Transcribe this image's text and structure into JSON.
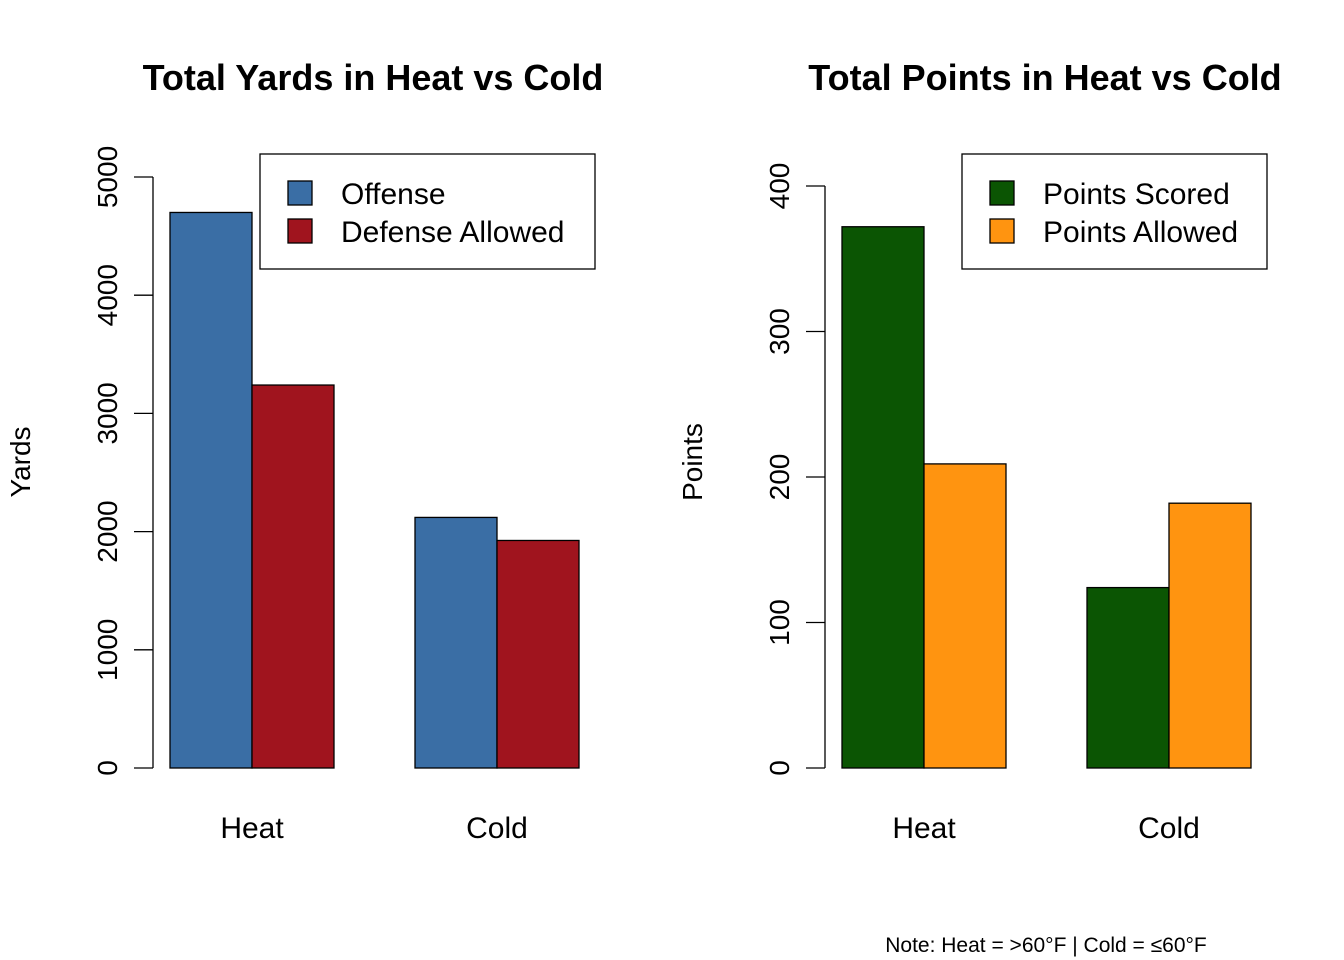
{
  "chart_data": [
    {
      "type": "bar",
      "title": "Total Yards in Heat vs Cold",
      "xlabel": "",
      "ylabel": "Yards",
      "ylim": [
        0,
        5000
      ],
      "yticks": [
        "0",
        "1000",
        "2000",
        "3000",
        "4000",
        "5000"
      ],
      "categories": [
        "Heat",
        "Cold"
      ],
      "series": [
        {
          "name": "Offense",
          "color": "#3A6EA5",
          "values": [
            4700,
            2120
          ]
        },
        {
          "name": "Defense Allowed",
          "color": "#A0141E",
          "values": [
            3240,
            1925
          ]
        }
      ],
      "legend": "top-right"
    },
    {
      "type": "bar",
      "title": "Total Points in Heat vs Cold",
      "xlabel": "",
      "ylabel": "Points",
      "ylim": [
        0,
        400
      ],
      "yticks": [
        "0",
        "100",
        "200",
        "300",
        "400"
      ],
      "categories": [
        "Heat",
        "Cold"
      ],
      "series": [
        {
          "name": "Points Scored",
          "color": "#0B5503",
          "values": [
            372,
            124
          ]
        },
        {
          "name": "Points Allowed",
          "color": "#FF9410",
          "values": [
            209,
            182
          ]
        }
      ],
      "legend": "top-right"
    }
  ],
  "note": "Note: Heat = >60°F | Cold = ≤60°F"
}
